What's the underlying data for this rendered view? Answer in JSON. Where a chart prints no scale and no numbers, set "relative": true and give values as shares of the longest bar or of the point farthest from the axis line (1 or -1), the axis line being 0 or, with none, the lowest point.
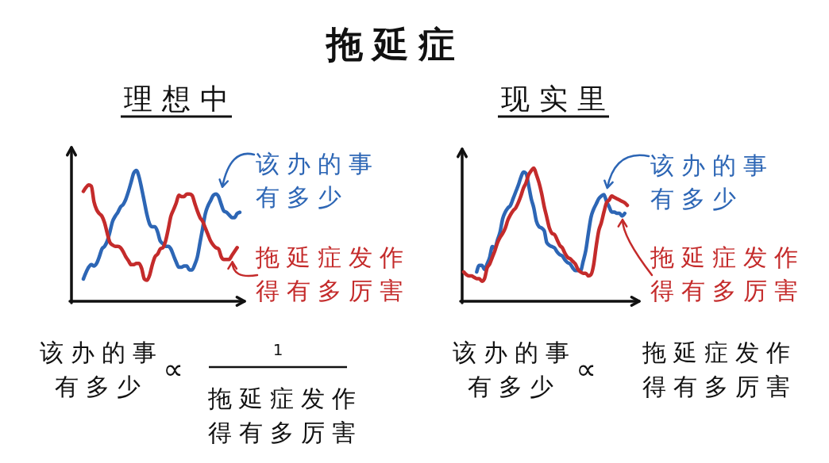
{
  "chart_data": [
    {
      "type": "line",
      "subtitle": "理想中",
      "relative": true,
      "legend": "right",
      "categories": [
        null,
        null,
        null,
        null,
        null,
        null,
        null,
        null,
        null,
        null,
        null,
        null,
        null,
        null,
        null,
        null,
        null,
        null,
        null,
        null,
        null,
        null,
        null,
        null,
        null,
        null,
        null,
        null,
        null,
        null,
        null,
        null,
        null,
        null,
        null,
        null,
        null,
        null,
        null,
        null,
        null,
        null,
        null,
        null,
        null,
        null,
        null,
        null,
        null,
        null,
        null,
        null,
        null,
        null,
        null,
        null,
        null,
        null,
        null,
        null
      ],
      "series": [
        {
          "name": "该办的事有多少",
          "color": "#2d66b5",
          "values": [
            0.17,
            0.22,
            0.26,
            0.28,
            0.27,
            0.29,
            0.34,
            0.4,
            0.42,
            0.46,
            0.53,
            0.61,
            0.65,
            0.68,
            0.72,
            0.74,
            0.78,
            0.84,
            0.91,
            0.98,
            1,
            0.95,
            0.86,
            0.76,
            0.66,
            0.59,
            0.57,
            0.57,
            0.53,
            0.46,
            0.44,
            0.42,
            0.42,
            0.4,
            0.35,
            0.3,
            0.26,
            0.26,
            0.27,
            0.27,
            0.24,
            0.24,
            0.28,
            0.34,
            0.45,
            0.56,
            0.67,
            0.73,
            0.77,
            0.81,
            0.82,
            0.8,
            0.74,
            0.69,
            0.68,
            0.66,
            0.64,
            0.64,
            0.67,
            0.68
          ]
        },
        {
          "name": "拖延症发作得有多厉害",
          "color": "#c42b2b",
          "values": [
            0.84,
            0.87,
            0.89,
            0.88,
            0.76,
            0.7,
            0.67,
            0.65,
            0.6,
            0.52,
            0.45,
            0.43,
            0.42,
            0.42,
            0.41,
            0.38,
            0.34,
            0.31,
            0.28,
            0.28,
            0.29,
            0.29,
            0.25,
            0.17,
            0.16,
            0.2,
            0.28,
            0.34,
            0.36,
            0.4,
            0.41,
            0.46,
            0.55,
            0.65,
            0.7,
            0.75,
            0.81,
            0.8,
            0.8,
            0.82,
            0.82,
            0.81,
            0.75,
            0.69,
            0.64,
            0.61,
            0.56,
            0.51,
            0.46,
            0.43,
            0.41,
            0.4,
            0.34,
            0.32,
            0.32,
            0.32,
            0.35,
            0.38,
            0.41,
            null
          ]
        }
      ],
      "annotations": [
        "该办的事有多少",
        "∝",
        "1",
        "拖延症发作得有多厉害"
      ]
    },
    {
      "type": "line",
      "title": "拖延症",
      "subtitle": "现实里",
      "relative": true,
      "legend": "right",
      "categories": [
        null,
        null,
        null,
        null,
        null,
        null,
        null,
        null,
        null,
        null,
        null,
        null,
        null,
        null,
        null,
        null,
        null,
        null,
        null,
        null,
        null,
        null,
        null,
        null,
        null,
        null,
        null,
        null,
        null,
        null,
        null,
        null,
        null,
        null,
        null,
        null,
        null,
        null,
        null,
        null,
        null,
        null,
        null,
        null,
        null,
        null,
        null,
        null,
        null,
        null,
        null,
        null,
        null,
        null,
        null,
        null,
        null,
        null,
        null,
        null,
        null,
        null,
        null,
        null
      ],
      "series": [
        {
          "name": "该办的事有多少",
          "color": "#2d66b5",
          "values": [
            null,
            null,
            null,
            null,
            null,
            0.22,
            0.27,
            0.27,
            0.24,
            0.28,
            0.33,
            0.41,
            0.4,
            0.46,
            0.52,
            0.62,
            0.67,
            0.7,
            0.72,
            0.77,
            0.82,
            0.87,
            0.93,
            0.97,
            0.96,
            0.87,
            0.77,
            0.7,
            0.6,
            0.56,
            0.55,
            0.53,
            0.44,
            0.42,
            0.41,
            0.4,
            0.37,
            0.35,
            0.34,
            0.31,
            0.29,
            0.28,
            0.25,
            0.23,
            0.23,
            0.23,
            0.3,
            0.38,
            0.51,
            0.63,
            0.69,
            0.73,
            0.77,
            0.79,
            0.8,
            0.75,
            0.71,
            0.67,
            0.67,
            0.66,
            0.66,
            0.64,
            0.66,
            null
          ]
        },
        {
          "name": "拖延症发作得有多厉害",
          "color": "#c42b2b",
          "values": [
            0.22,
            0.2,
            0.19,
            0.19,
            0.18,
            0.17,
            0.17,
            0.15,
            0.17,
            0.25,
            0.28,
            0.33,
            0.38,
            0.44,
            0.48,
            0.51,
            0.55,
            0.61,
            0.65,
            0.68,
            0.7,
            0.74,
            0.79,
            0.85,
            0.89,
            0.95,
            0.98,
            1,
            0.95,
            0.89,
            0.81,
            0.71,
            0.63,
            0.55,
            0.51,
            0.5,
            0.46,
            0.42,
            0.4,
            0.36,
            0.33,
            0.32,
            0.3,
            0.28,
            0.24,
            0.22,
            0.21,
            0.21,
            0.19,
            0.2,
            0.27,
            0.41,
            0.53,
            0.59,
            0.67,
            0.74,
            0.76,
            0.79,
            0.78,
            0.77,
            0.76,
            0.75,
            0.74,
            0.72
          ]
        }
      ],
      "annotations": [
        "该办的事有多少",
        "∝",
        "拖延症发作得有多厉害"
      ]
    }
  ]
}
